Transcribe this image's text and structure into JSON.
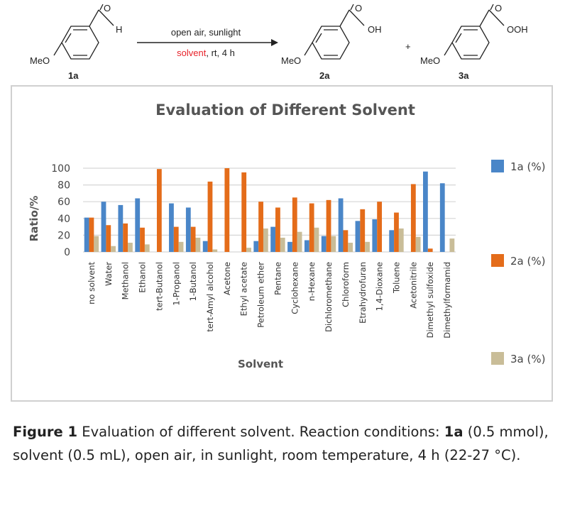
{
  "scheme": {
    "reactant_label": "1a",
    "reactant_substituent": "MeO",
    "reactant_group": "H",
    "reactant_carbonyl": "O",
    "arrow_top": "open air, sunlight",
    "arrow_bottom_red": "solvent",
    "arrow_bottom_rest": ", rt, 4 h",
    "product1_label": "2a",
    "product1_substituent": "MeO",
    "product1_group": "OH",
    "product1_carbonyl": "O",
    "plus": "+",
    "product2_label": "3a",
    "product2_substituent": "MeO",
    "product2_group": "OOH",
    "product2_carbonyl": "O",
    "solvent_color": "#e8222a"
  },
  "chart_data": {
    "type": "bar",
    "title": "Evaluation of Different Solvent",
    "xlabel": "Solvent",
    "ylabel": "Ratio/%",
    "ylim": [
      0,
      100
    ],
    "yticks": [
      "0",
      "20",
      "40",
      "60",
      "80",
      "100"
    ],
    "grid": true,
    "legend_position": "right",
    "categories": [
      "no solvent",
      "Water",
      "Methanol",
      "Ethanol",
      "tert-Butanol",
      "1-Propanol",
      "1-Butanol",
      "tert-Amyl alcohol",
      "Acetone",
      "Ethyl acetate",
      "Petroleum ether",
      "Pentane",
      "Cyclohexane",
      "n-Hexane",
      "Dichloromethane",
      "Chloroform",
      "Etrahydrofuran",
      "1,4-Dioxane",
      "Toluene",
      "Acetonitrile",
      "Dimethyl sulfoxide",
      "Dimethylformamid"
    ],
    "series": [
      {
        "name": "1a (%)",
        "color": "#4a86c8",
        "values": [
          41,
          60,
          56,
          64,
          0,
          58,
          53,
          13,
          0,
          0,
          13,
          30,
          12,
          14,
          19,
          64,
          37,
          39,
          26,
          0,
          96,
          82
        ]
      },
      {
        "name": "2a (%)",
        "color": "#e46c1a",
        "values": [
          41,
          32,
          34,
          29,
          99,
          30,
          30,
          84,
          100,
          95,
          60,
          53,
          65,
          58,
          62,
          26,
          51,
          60,
          47,
          81,
          4,
          0
        ]
      },
      {
        "name": "3a (%)",
        "color": "#c9bd98",
        "values": [
          19,
          7,
          11,
          9,
          0,
          12,
          17,
          3,
          0,
          5,
          28,
          17,
          24,
          29,
          19,
          11,
          12,
          0,
          28,
          18,
          0,
          16
        ]
      }
    ]
  },
  "caption": {
    "figure_label": "Figure 1",
    "text_a": " Evaluation of different solvent. Reaction conditions: ",
    "compound": "1a",
    "text_b": " (0.5 mmol), solvent (0.5 mL), open air, in sunlight, room temperature, 4 h (22-27 °C)."
  }
}
